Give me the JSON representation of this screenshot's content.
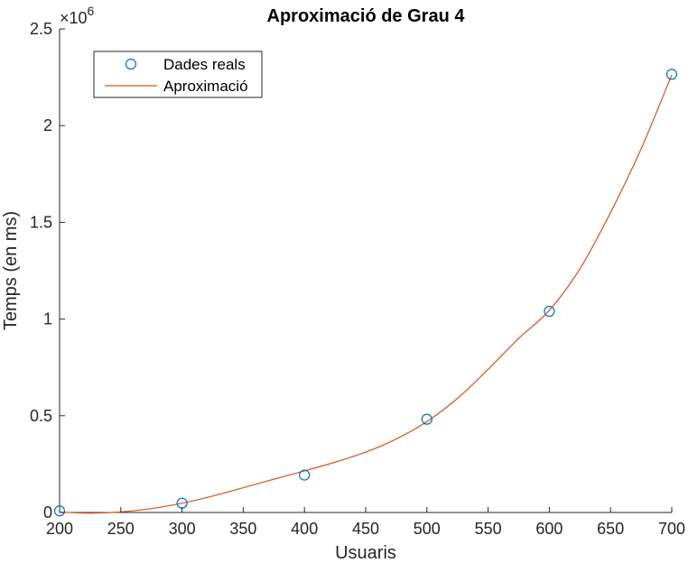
{
  "chart_data": {
    "type": "scatter",
    "title": "Aproximació de Grau 4",
    "xlabel": "Usuaris",
    "ylabel": "Temps (en ms)",
    "xlim": [
      200,
      700
    ],
    "ylim": [
      0,
      2500000
    ],
    "x_ticks": [
      200,
      250,
      300,
      350,
      400,
      450,
      500,
      550,
      600,
      650,
      700
    ],
    "y_ticks": [
      0,
      0.5,
      1,
      1.5,
      2,
      2.5
    ],
    "y_multiplier": {
      "base": "10",
      "exponent": "6"
    },
    "legend_position": "top-left",
    "series": [
      {
        "name": "Dades reals",
        "kind": "markers",
        "marker": "circle",
        "color": "#0072BD",
        "x": [
          200,
          300,
          400,
          500,
          600,
          700
        ],
        "y": [
          8000,
          48000,
          193000,
          482000,
          1040000,
          2265000
        ]
      },
      {
        "name": "Aproximació",
        "kind": "line",
        "color": "#D95319",
        "x": [
          200,
          220,
          230,
          250,
          275,
          300,
          325,
          350,
          375,
          400,
          425,
          450,
          475,
          500,
          525,
          550,
          575,
          600,
          625,
          650,
          675,
          700
        ],
        "y": [
          2000,
          -3000,
          -3000,
          3000,
          20000,
          48000,
          85000,
          128000,
          172000,
          215000,
          260000,
          312000,
          380000,
          470000,
          590000,
          740000,
          900000,
          1045000,
          1260000,
          1550000,
          1880000,
          2262000
        ]
      }
    ]
  }
}
